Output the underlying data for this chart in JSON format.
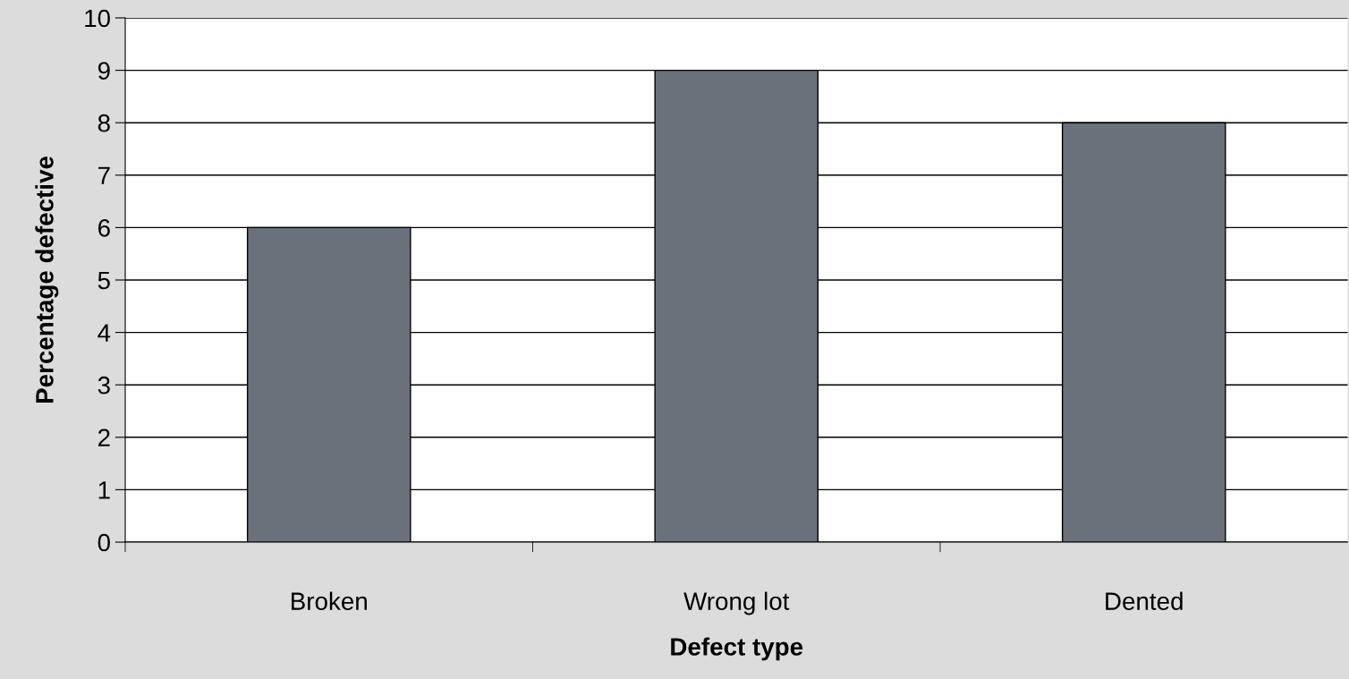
{
  "chart_data": {
    "type": "bar",
    "xlabel": "Defect type",
    "ylabel": "Percentage defective",
    "categories": [
      "Broken",
      "Wrong lot",
      "Dented"
    ],
    "values": [
      6,
      9,
      8
    ],
    "color": "#6b717b",
    "ylim": [
      0,
      10
    ],
    "yticks": [
      0,
      1,
      2,
      3,
      4,
      5,
      6,
      7,
      8,
      9,
      10
    ],
    "grid": "y"
  }
}
